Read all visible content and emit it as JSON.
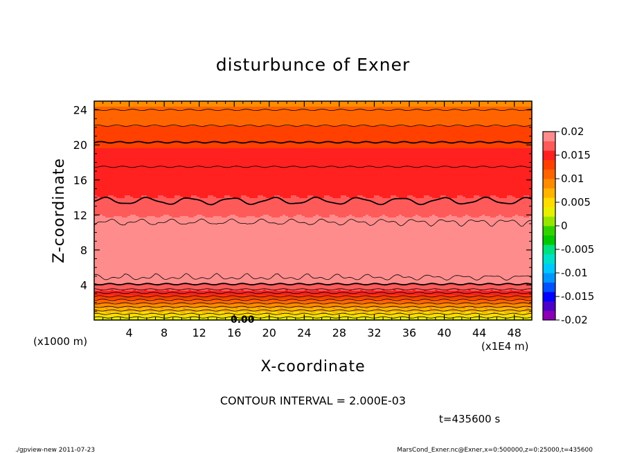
{
  "chart_data": {
    "type": "heatmap",
    "title": "disturbunce of Exner",
    "xlabel": "X-coordinate",
    "ylabel": "Z-coordinate",
    "x_unit_note": "(x1E4 m)",
    "y_unit_note": "(x1000 m)",
    "xlim": [
      0,
      50
    ],
    "ylim": [
      0,
      25
    ],
    "x_ticks": [
      4,
      8,
      12,
      16,
      20,
      24,
      28,
      32,
      36,
      40,
      44,
      48
    ],
    "y_ticks": [
      4,
      8,
      12,
      16,
      20,
      24
    ],
    "contour_interval_text": "CONTOUR INTERVAL = 2.000E-03",
    "time_label": "t=435600 s",
    "contour_label": "0.00",
    "colorbar": {
      "ticks": [
        "0.02",
        "0.015",
        "0.01",
        "0.005",
        "0",
        "-0.005",
        "-0.01",
        "-0.015",
        "-0.02"
      ],
      "range": [
        -0.02,
        0.02
      ],
      "colors": [
        "#8a00b4",
        "#4b00c8",
        "#0000ff",
        "#0050ff",
        "#0096ff",
        "#00c8ff",
        "#00e0c8",
        "#00e080",
        "#00c800",
        "#32d200",
        "#96e600",
        "#e6f000",
        "#ffdc00",
        "#ffb400",
        "#ff8c00",
        "#ff6400",
        "#ff4000",
        "#ff2020",
        "#ff5a5a",
        "#ff8c8c"
      ]
    },
    "vertical_profile": {
      "z": [
        0,
        0.5,
        1,
        1.5,
        2,
        2.5,
        3,
        3.5,
        4,
        4.5,
        5,
        6,
        7,
        8,
        9,
        10,
        11,
        12,
        13,
        14,
        16,
        18,
        20,
        21,
        22,
        23,
        24,
        25
      ],
      "value": [
        0.003,
        0.0045,
        0.0065,
        0.0085,
        0.0105,
        0.0125,
        0.0145,
        0.0165,
        0.0178,
        0.0185,
        0.0192,
        0.0196,
        0.0199,
        0.0201,
        0.02,
        0.0196,
        0.0189,
        0.0178,
        0.0166,
        0.016,
        0.0156,
        0.015,
        0.0138,
        0.013,
        0.0122,
        0.0113,
        0.0104,
        0.0095
      ]
    }
  },
  "footer": {
    "left": "./gpview-new   2011-07-23",
    "right": "MarsCond_Exner.nc@Exner,x=0:500000,z=0:25000,t=435600"
  }
}
